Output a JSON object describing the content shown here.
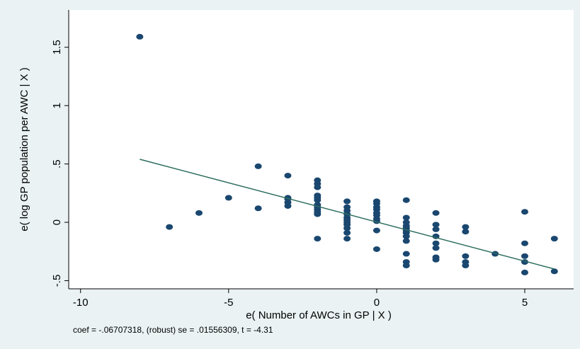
{
  "chart_data": {
    "type": "scatter",
    "x": [
      -8,
      -7,
      -6,
      -5,
      -4,
      -4,
      -3,
      -3,
      -3,
      -3,
      -3,
      -2,
      -2,
      -2,
      -2,
      -2,
      -2,
      -2,
      -2,
      -2,
      -2,
      -2,
      -2,
      -1,
      -1,
      -1,
      -1,
      -1,
      -1,
      -1,
      -1,
      -1,
      -1,
      -1,
      0,
      0,
      0,
      0,
      0,
      0,
      0,
      0,
      0,
      0,
      1,
      1,
      1,
      1,
      1,
      1,
      1,
      1,
      1,
      1,
      1,
      1,
      2,
      2,
      2,
      2,
      2,
      2,
      2,
      2,
      3,
      3,
      3,
      3,
      3,
      4,
      5,
      5,
      5,
      5,
      5,
      6,
      6
    ],
    "values": [
      1.59,
      -0.04,
      0.08,
      0.21,
      0.48,
      0.12,
      0.4,
      0.21,
      0.2,
      0.17,
      0.14,
      0.36,
      0.33,
      0.3,
      0.23,
      0.21,
      0.19,
      0.15,
      0.13,
      0.11,
      0.09,
      0.07,
      -0.14,
      0.18,
      0.13,
      0.1,
      0.07,
      0.04,
      0.02,
      0.0,
      -0.02,
      -0.05,
      -0.09,
      -0.14,
      0.18,
      0.16,
      0.13,
      0.11,
      0.08,
      0.06,
      0.03,
      0.01,
      -0.07,
      -0.23,
      0.19,
      0.04,
      0.0,
      -0.03,
      -0.05,
      -0.07,
      -0.09,
      -0.12,
      -0.16,
      -0.27,
      -0.34,
      -0.37,
      0.08,
      -0.02,
      -0.06,
      -0.12,
      -0.18,
      -0.22,
      -0.3,
      -0.32,
      -0.04,
      -0.08,
      -0.29,
      -0.34,
      -0.37,
      -0.27,
      0.09,
      -0.18,
      -0.29,
      -0.34,
      -0.43,
      -0.14,
      -0.42
    ],
    "color": "#1a476f",
    "fit_line": {
      "x": [
        -8,
        6
      ],
      "y": [
        0.54,
        -0.4
      ],
      "color": "#2d6e5e"
    },
    "xlim": [
      -10.4,
      6.65
    ],
    "ylim": [
      -0.57,
      1.82
    ],
    "xticks": [
      -10,
      -5,
      0,
      5
    ],
    "yticks": [
      {
        "value": -0.5,
        "label": "-.5"
      },
      0,
      {
        "value": 0.5,
        "label": ".5"
      },
      1,
      1.5
    ],
    "xlabel": "e( Number of AWCs in GP | X )",
    "ylabel": "e( log GP population per AWC | X )",
    "note": "coef = -.06707318, (robust) se = .01556309, t = -4.31"
  }
}
